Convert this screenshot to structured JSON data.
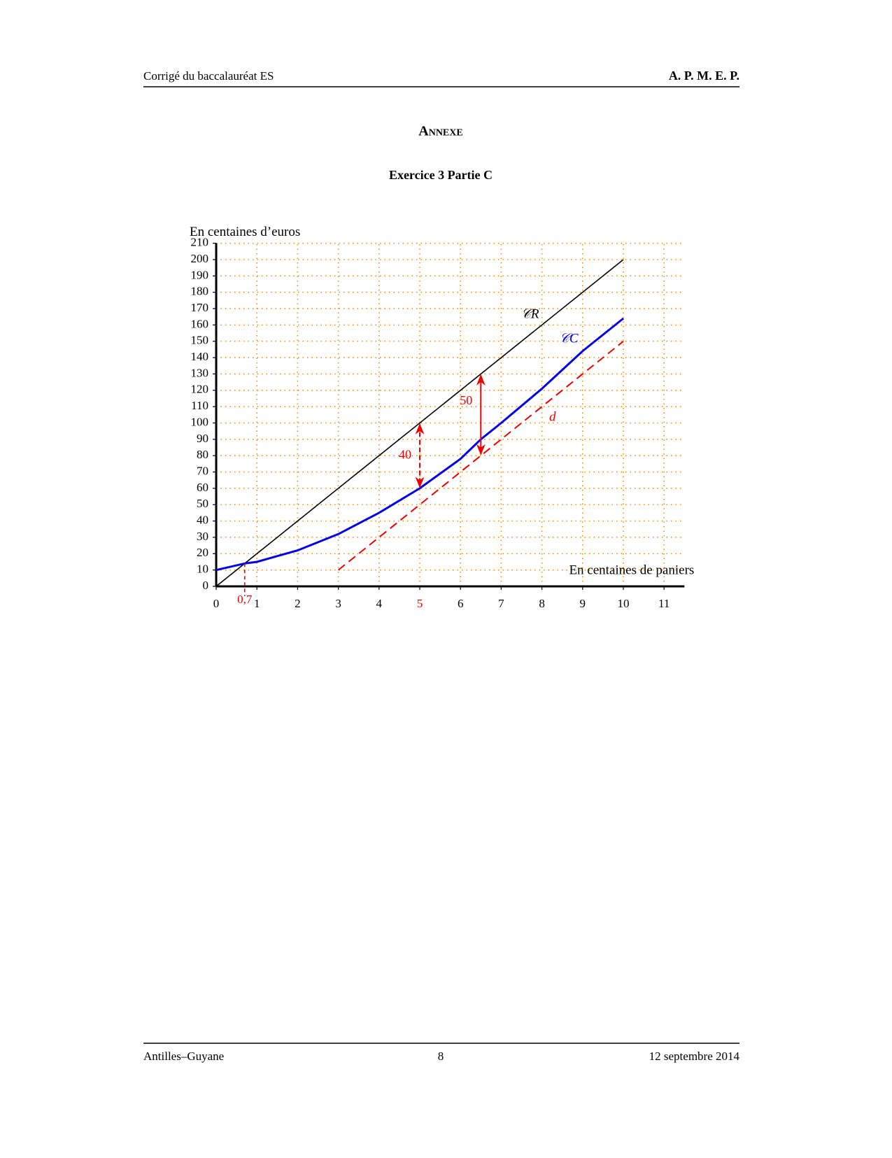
{
  "header": {
    "left": "Corrigé du baccalauréat ES",
    "right": "A. P. M. E. P."
  },
  "title": "Annexe",
  "subtitle": "Exercice 3 Partie C",
  "chart_data": {
    "type": "line",
    "y_label": "En centaines d’euros",
    "x_label": "En centaines de paniers",
    "xlim": [
      0,
      11.5
    ],
    "ylim": [
      0,
      210
    ],
    "xticks": [
      0,
      1,
      2,
      3,
      4,
      5,
      6,
      7,
      8,
      9,
      10,
      11
    ],
    "yticks": [
      0,
      10,
      20,
      30,
      40,
      50,
      60,
      70,
      80,
      90,
      100,
      110,
      120,
      130,
      140,
      150,
      160,
      170,
      180,
      190,
      200,
      210
    ],
    "grid": true,
    "grid_color": "#ff8c00",
    "series": [
      {
        "name": "𝒞R",
        "color": "#000000",
        "dashed": false,
        "x": [
          0,
          10
        ],
        "values": [
          0,
          200
        ]
      },
      {
        "name": "𝒞C",
        "color": "#0000ee",
        "dashed": false,
        "x": [
          0,
          0.7,
          1,
          2,
          3,
          4,
          5,
          6,
          6.5,
          7,
          8,
          9,
          10
        ],
        "values": [
          10,
          14,
          15,
          22,
          32,
          45,
          60,
          78,
          90,
          100,
          121,
          144,
          164
        ]
      },
      {
        "name": "d",
        "color": "#ee0000",
        "dashed": true,
        "x": [
          3,
          10
        ],
        "values": [
          10,
          150
        ]
      }
    ],
    "arrows": [
      {
        "x": 5,
        "y_from": 100,
        "y_to": 60,
        "label": "40",
        "color": "#ee0000"
      },
      {
        "x": 6.5,
        "y_from": 130,
        "y_to": 80,
        "label": "50",
        "color": "#ee0000"
      }
    ],
    "marker": {
      "x": 0.7,
      "y": 14,
      "label": "0,7",
      "color": "#ee0000"
    }
  },
  "footer": {
    "left": "Antilles–Guyane",
    "center": "8",
    "right": "12 septembre 2014"
  }
}
